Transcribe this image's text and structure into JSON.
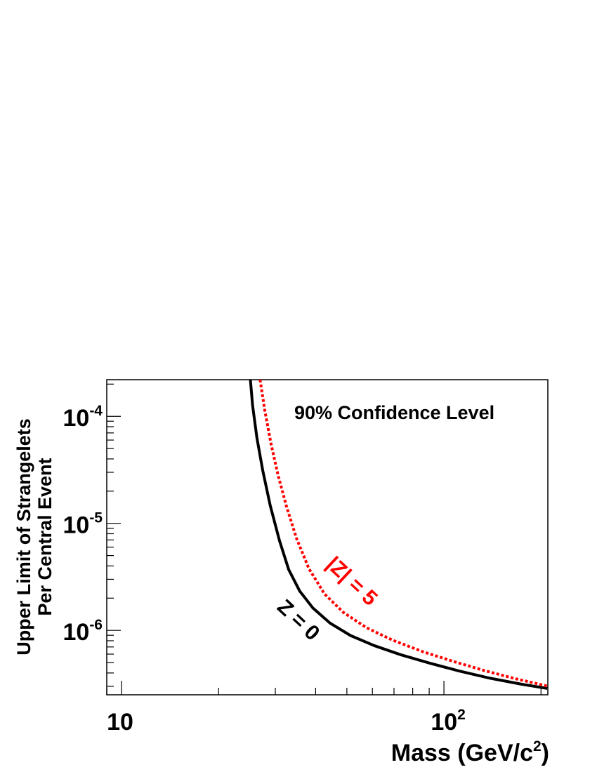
{
  "chart_data": {
    "type": "line",
    "title": "",
    "xlabel": "Mass (GeV/c",
    "xlabel_sup": "2",
    "xlabel_tail": ")",
    "ylabel_line1": "Upper Limit of Strangelets",
    "ylabel_line2": "Per Central Event",
    "x_scale": "log",
    "y_scale": "log",
    "xlim": [
      9,
      210
    ],
    "ylim": [
      2.5e-07,
      0.00022
    ],
    "x_tick_labels": [
      {
        "value": 10,
        "base": "10",
        "sup": ""
      },
      {
        "value": 100,
        "base": "10",
        "sup": "2"
      }
    ],
    "y_tick_labels": [
      {
        "value": 0.0001,
        "base": "10",
        "sup": "-4"
      },
      {
        "value": 1e-05,
        "base": "10",
        "sup": "-5"
      },
      {
        "value": 1e-06,
        "base": "10",
        "sup": "-6"
      }
    ],
    "annotation": "90% Confidence Level",
    "grid": false,
    "series": [
      {
        "name": "Z = 0",
        "color": "#000000",
        "style": "solid",
        "x": [
          25.1,
          25.5,
          26.3,
          27.4,
          28.9,
          30.9,
          33.0,
          35.7,
          39.2,
          44.3,
          51.3,
          60.6,
          73.3,
          90.2,
          111.4,
          139.1,
          173.9,
          209.2
        ],
        "y": [
          0.00022,
          0.000127,
          6.28e-05,
          3.14e-05,
          1.48e-05,
          6.91e-06,
          3.7e-06,
          2.33e-06,
          1.62e-06,
          1.17e-06,
          8.96e-07,
          7.23e-07,
          5.93e-07,
          4.95e-07,
          4.17e-07,
          3.57e-07,
          3.14e-07,
          2.87e-07
        ]
      },
      {
        "name": "|Z| = 5",
        "color": "#ff0000",
        "style": "dotted",
        "x": [
          26.9,
          27.8,
          29.1,
          30.6,
          32.5,
          34.9,
          38.1,
          42.6,
          48.8,
          57.5,
          69.7,
          86.3,
          107.6,
          134.9,
          168.2,
          209.2
        ],
        "y": [
          0.00022,
          0.000115,
          5.48e-05,
          2.8e-05,
          1.43e-05,
          7.23e-06,
          3.79e-06,
          2.19e-06,
          1.47e-06,
          1.06e-06,
          8.04e-07,
          6.3e-07,
          5.1e-07,
          4.17e-07,
          3.51e-07,
          3.02e-07
        ]
      }
    ],
    "curve_labels": [
      {
        "series": 0,
        "text": "Z = 0",
        "color": "#000000"
      },
      {
        "series": 1,
        "text": "|Z| = 5",
        "color": "#ff0000"
      }
    ]
  }
}
